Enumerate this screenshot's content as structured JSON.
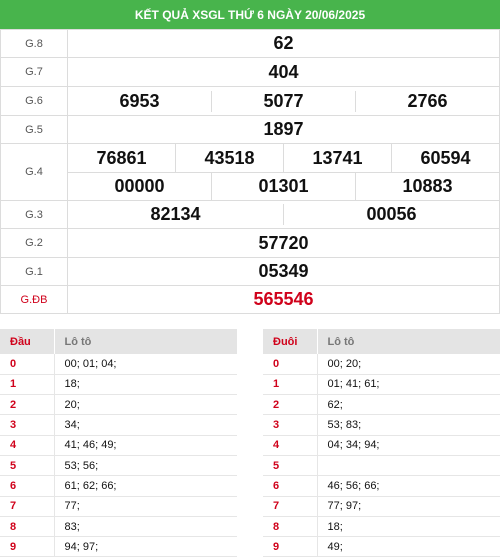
{
  "title": "KẾT QUẢ XSGL THỨ 6 NGÀY 20/06/2025",
  "prizes": {
    "g8": {
      "label": "G.8",
      "numbers": [
        "62"
      ]
    },
    "g7": {
      "label": "G.7",
      "numbers": [
        "404"
      ]
    },
    "g6": {
      "label": "G.6",
      "numbers": [
        "6953",
        "5077",
        "2766"
      ]
    },
    "g5": {
      "label": "G.5",
      "numbers": [
        "1897"
      ]
    },
    "g4": {
      "label": "G.4",
      "row1": [
        "76861",
        "43518",
        "13741",
        "60594"
      ],
      "row2": [
        "00000",
        "01301",
        "10883"
      ]
    },
    "g3": {
      "label": "G.3",
      "numbers": [
        "82134",
        "00056"
      ]
    },
    "g2": {
      "label": "G.2",
      "numbers": [
        "57720"
      ]
    },
    "g1": {
      "label": "G.1",
      "numbers": [
        "05349"
      ]
    },
    "gdb": {
      "label": "G.ĐB",
      "numbers": [
        "565546"
      ]
    }
  },
  "dau_table": {
    "header_key": "Đầu",
    "header_value": "Lô tô",
    "rows": [
      {
        "k": "0",
        "v": "00; 01; 04;"
      },
      {
        "k": "1",
        "v": "18;"
      },
      {
        "k": "2",
        "v": "20;"
      },
      {
        "k": "3",
        "v": "34;"
      },
      {
        "k": "4",
        "v": "41; 46; 49;"
      },
      {
        "k": "5",
        "v": "53; 56;"
      },
      {
        "k": "6",
        "v": "61; 62; 66;"
      },
      {
        "k": "7",
        "v": "77;"
      },
      {
        "k": "8",
        "v": "83;"
      },
      {
        "k": "9",
        "v": "94; 97;"
      }
    ]
  },
  "duoi_table": {
    "header_key": "Đuôi",
    "header_value": "Lô tô",
    "rows": [
      {
        "k": "0",
        "v": "00; 20;"
      },
      {
        "k": "1",
        "v": "01; 41; 61;"
      },
      {
        "k": "2",
        "v": "62;"
      },
      {
        "k": "3",
        "v": "53; 83;"
      },
      {
        "k": "4",
        "v": "04; 34; 94;"
      },
      {
        "k": "5",
        "v": ""
      },
      {
        "k": "6",
        "v": "46; 56; 66;"
      },
      {
        "k": "7",
        "v": "77; 97;"
      },
      {
        "k": "8",
        "v": "18;"
      },
      {
        "k": "9",
        "v": "49;"
      }
    ]
  },
  "colors": {
    "header_bg": "#48b44c",
    "special_prize": "#d0021b",
    "loto_key": "#d0021b"
  }
}
